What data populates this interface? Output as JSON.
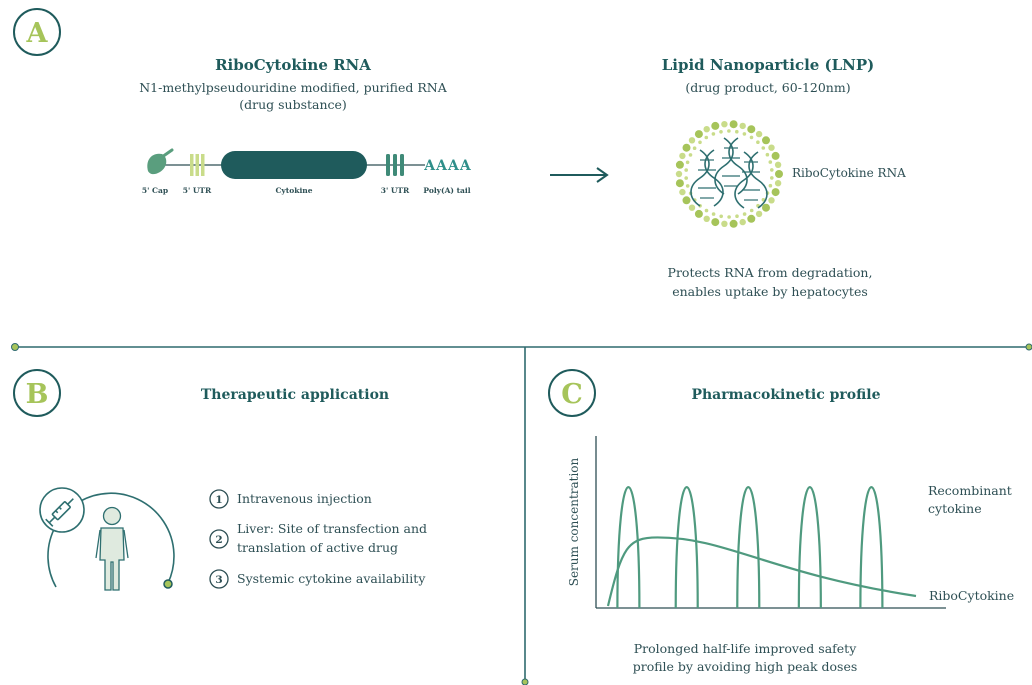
{
  "colors": {
    "teal_dark": "#1f5b5c",
    "teal": "#3a7f73",
    "green_mid": "#4f9a7f",
    "lime": "#a6c45a",
    "lime_light": "#c9dc8a",
    "text": "#2e4f54",
    "divider": "#2f6a6e"
  },
  "panel_a": {
    "badge": "A",
    "rna_title": "RiboCytokine RNA",
    "rna_subtitle_1": "N1-methylpseudouridine modified, purified RNA",
    "rna_subtitle_2": "(drug substance)",
    "segments": {
      "cap": "5' Cap",
      "utr5": "5' UTR",
      "cytokine": "Cytokine",
      "utr3": "3' UTR",
      "polya": "Poly(A) tail"
    },
    "polya_text": "AAAA",
    "arrow_icon": "right-arrow-icon",
    "lnp_title": "Lipid Nanoparticle (LNP)",
    "lnp_subtitle": "(drug product, 60-120nm)",
    "lnp_label": "RiboCytokine RNA",
    "lnp_note_1": "Protects RNA from degradation,",
    "lnp_note_2": "enables uptake by hepatocytes"
  },
  "panel_b": {
    "badge": "B",
    "title": "Therapeutic application",
    "icons": [
      "syringe-icon",
      "person-icon"
    ],
    "steps": [
      {
        "num": "1",
        "line1": "Intravenous injection",
        "line2": ""
      },
      {
        "num": "2",
        "line1": "Liver: Site of transfection and",
        "line2": "translation of active drug"
      },
      {
        "num": "3",
        "line1": "Systemic cytokine availability",
        "line2": ""
      }
    ]
  },
  "panel_c": {
    "badge": "C",
    "title": "Pharmacokinetic profile",
    "caption_1": "Prolonged half-life improved safety",
    "caption_2": "profile by avoiding high peak doses"
  },
  "chart_data": {
    "type": "line",
    "ylabel": "Serum concentration",
    "xlabel": "",
    "series": [
      {
        "name": "Recombinant cytokine",
        "label_line1": "Recombinant",
        "label_line2": "cytokine",
        "peaks": [
          0.1,
          0.28,
          0.47,
          0.66,
          0.85
        ],
        "peak_height": 0.9
      },
      {
        "name": "RiboCytokine",
        "label_line1": "RiboCytokine",
        "label_line2": "",
        "peak_x": 0.19,
        "peak_height": 0.42
      }
    ]
  }
}
